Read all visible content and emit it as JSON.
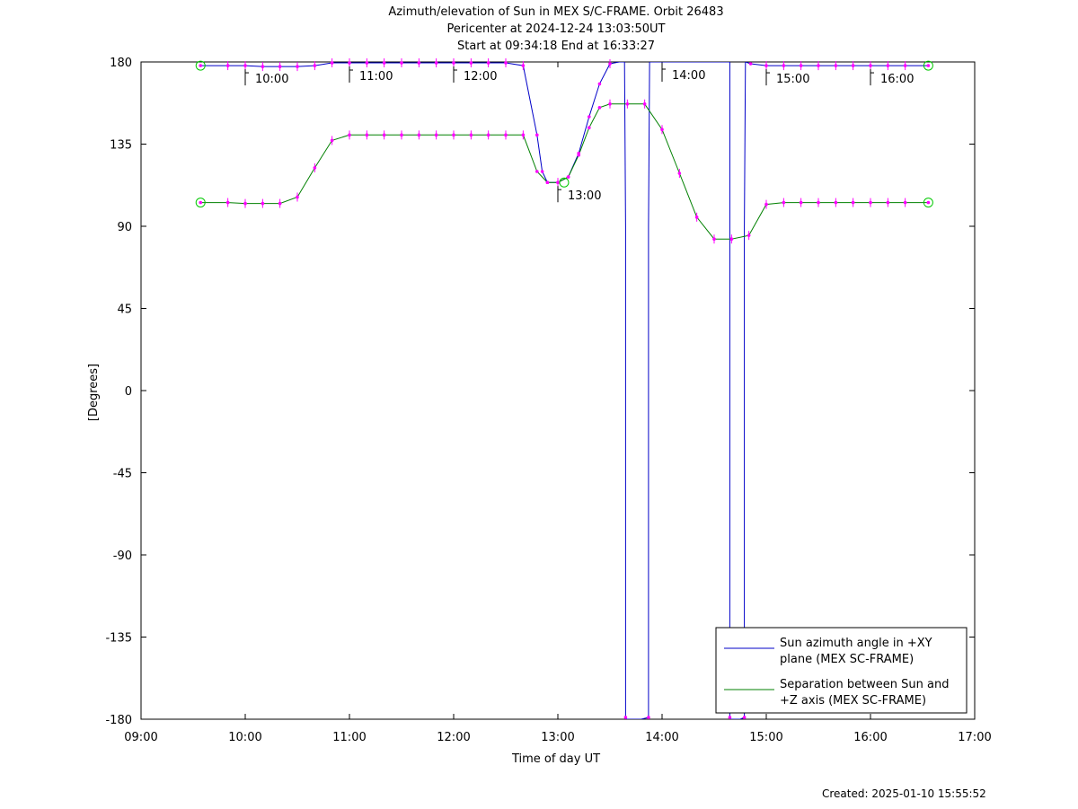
{
  "chart_data": {
    "type": "line",
    "title_lines": [
      "Azimuth/elevation of Sun in MEX S/C-FRAME.  Orbit 26483",
      "Pericenter at 2024-12-24 13:03:50UT",
      "Start at 09:34:18 End at 16:33:27"
    ],
    "xlabel": "Time of day UT",
    "ylabel": "[Degrees]",
    "xlim": [
      9.0,
      17.0
    ],
    "ylim": [
      -180,
      180
    ],
    "xticks": [
      {
        "v": 9,
        "label": "09:00"
      },
      {
        "v": 10,
        "label": "10:00"
      },
      {
        "v": 11,
        "label": "11:00"
      },
      {
        "v": 12,
        "label": "12:00"
      },
      {
        "v": 13,
        "label": "13:00"
      },
      {
        "v": 14,
        "label": "14:00"
      },
      {
        "v": 15,
        "label": "15:00"
      },
      {
        "v": 16,
        "label": "16:00"
      },
      {
        "v": 17,
        "label": "17:00"
      }
    ],
    "yticks": [
      {
        "v": 180,
        "label": "180"
      },
      {
        "v": 135,
        "label": "135"
      },
      {
        "v": 90,
        "label": "90"
      },
      {
        "v": 45,
        "label": "45"
      },
      {
        "v": 0,
        "label": "0"
      },
      {
        "v": -45,
        "label": "-45"
      },
      {
        "v": -90,
        "label": "-90"
      },
      {
        "v": -135,
        "label": "-135"
      },
      {
        "v": -180,
        "label": "-180"
      }
    ],
    "grid": false,
    "legend_position": "bottom-right",
    "series": [
      {
        "name": "Sun azimuth angle in +XY plane (MEX SC-FRAME)",
        "legend_lines": [
          "Sun azimuth angle in +XY",
          "plane (MEX SC-FRAME)"
        ],
        "color": "#0000c8",
        "x": [
          9.571,
          9.833,
          10.0,
          10.167,
          10.333,
          10.5,
          10.667,
          10.833,
          11.0,
          11.167,
          11.333,
          11.5,
          11.667,
          11.833,
          12.0,
          12.167,
          12.333,
          12.5,
          12.667,
          12.8,
          12.85,
          12.9,
          13.0,
          13.1,
          13.2,
          13.3,
          13.4,
          13.5,
          13.59,
          13.64,
          13.65,
          13.65,
          13.66,
          13.7,
          13.8,
          13.87,
          13.87,
          13.88,
          13.9,
          14.0,
          14.1,
          14.2,
          14.3,
          14.4,
          14.5,
          14.6,
          14.65,
          14.65,
          14.66,
          14.7,
          14.75,
          14.79,
          14.79,
          14.8,
          14.85,
          15.0,
          15.167,
          15.333,
          15.5,
          15.667,
          15.833,
          16.0,
          16.167,
          16.333,
          16.555
        ],
        "y": [
          178,
          178,
          178,
          177.5,
          177.5,
          177.5,
          178,
          179.5,
          179.5,
          179.5,
          179.5,
          179.5,
          179.5,
          179.5,
          179.5,
          179.5,
          179.5,
          179.5,
          178,
          140,
          120,
          114,
          114,
          117,
          130,
          150,
          168,
          179,
          180,
          180,
          90,
          -179,
          -180,
          -180,
          -180,
          -179,
          90,
          180,
          180,
          180,
          180,
          180,
          180,
          180,
          180,
          180,
          180,
          -179,
          -180,
          -180,
          -180,
          -179,
          90,
          180,
          179,
          178,
          178,
          178,
          178,
          178,
          178,
          178,
          178,
          178,
          178
        ]
      },
      {
        "name": "Separation between Sun and +Z axis (MEX SC-FRAME)",
        "legend_lines": [
          "Separation between Sun and",
          "+Z axis (MEX SC-FRAME)"
        ],
        "color": "#008000",
        "x": [
          9.571,
          9.833,
          10.0,
          10.167,
          10.333,
          10.5,
          10.667,
          10.833,
          11.0,
          11.167,
          11.333,
          11.5,
          11.667,
          11.833,
          12.0,
          12.167,
          12.333,
          12.5,
          12.667,
          12.8,
          12.9,
          13.0,
          13.1,
          13.2,
          13.3,
          13.4,
          13.5,
          13.667,
          13.833,
          14.0,
          14.167,
          14.333,
          14.5,
          14.667,
          14.833,
          15.0,
          15.167,
          15.333,
          15.5,
          15.667,
          15.833,
          16.0,
          16.167,
          16.333,
          16.555
        ],
        "y": [
          103,
          103,
          102.5,
          102.5,
          102.5,
          106,
          122,
          137,
          140,
          140,
          140,
          140,
          140,
          140,
          140,
          140,
          140,
          140,
          140,
          120,
          114,
          114,
          117,
          129,
          144,
          155,
          157,
          157,
          157,
          143,
          119,
          95,
          83,
          83,
          85,
          102,
          103,
          103,
          103,
          103,
          103,
          103,
          103,
          103,
          103
        ]
      }
    ],
    "hour_labels": [
      {
        "x": 10.0,
        "label": "10:00"
      },
      {
        "x": 11.0,
        "label": "11:00"
      },
      {
        "x": 12.0,
        "label": "12:00"
      },
      {
        "x": 13.0,
        "label": "13:00"
      },
      {
        "x": 14.0,
        "label": "14:00"
      },
      {
        "x": 15.0,
        "label": "15:00"
      },
      {
        "x": 16.0,
        "label": "16:00"
      }
    ]
  },
  "footer": {
    "created": "Created: 2025-01-10 15:55:52"
  }
}
